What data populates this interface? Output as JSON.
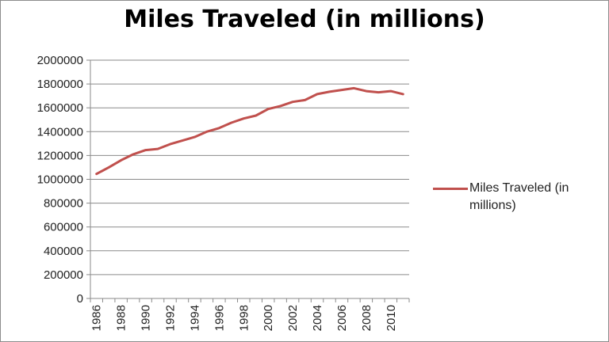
{
  "chart_data": {
    "type": "line",
    "title": "Miles Traveled (in millions)",
    "xlabel": "",
    "ylabel": "",
    "ylim": [
      0,
      2000000
    ],
    "yticks": [
      "0",
      "200000",
      "400000",
      "600000",
      "800000",
      "1000000",
      "1200000",
      "1400000",
      "1600000",
      "1800000",
      "2000000"
    ],
    "xtick_labels": [
      "1986",
      "1988",
      "1990",
      "1992",
      "1994",
      "1996",
      "1998",
      "2000",
      "2002",
      "2004",
      "2006",
      "2008",
      "2010"
    ],
    "x": [
      1986,
      1987,
      1988,
      1989,
      1990,
      1991,
      1992,
      1993,
      1994,
      1995,
      1996,
      1997,
      1998,
      1999,
      2000,
      2001,
      2002,
      2003,
      2004,
      2005,
      2006,
      2007,
      2008,
      2009,
      2010,
      2011
    ],
    "series": [
      {
        "name": "Miles Traveled (in millions)",
        "color": "#c0504d",
        "values": [
          1045000,
          1100000,
          1160000,
          1210000,
          1245000,
          1255000,
          1295000,
          1325000,
          1355000,
          1400000,
          1430000,
          1475000,
          1510000,
          1535000,
          1590000,
          1615000,
          1650000,
          1665000,
          1715000,
          1735000,
          1750000,
          1765000,
          1740000,
          1730000,
          1740000,
          1715000
        ]
      }
    ],
    "grid": true,
    "legend_position": "right"
  }
}
